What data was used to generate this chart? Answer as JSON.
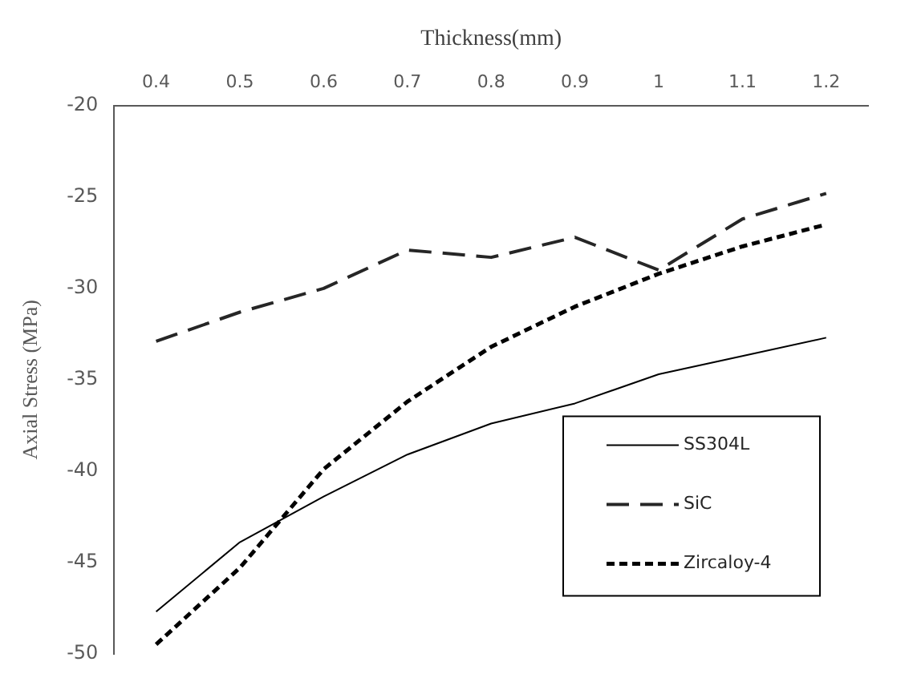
{
  "chart_data": {
    "type": "line",
    "xlabel": "Thickness(mm)",
    "ylabel": "Axial Stress (MPa)",
    "categories": [
      "0.4",
      "0.5",
      "0.6",
      "0.7",
      "0.8",
      "0.9",
      "1",
      "1.1",
      "1.2"
    ],
    "ylim": [
      -50,
      -20
    ],
    "yticks": [
      -50,
      -45,
      -40,
      -35,
      -30,
      -25,
      -20
    ],
    "legend": "bottom right",
    "marker": "none",
    "grid": false,
    "series": [
      {
        "name": "SS304L",
        "color": "#000000",
        "line_style": "solid",
        "values": [
          -47.7,
          -43.9,
          -41.4,
          -39.1,
          -37.4,
          -36.3,
          -34.7,
          -33.7,
          -32.7
        ]
      },
      {
        "name": "SiC",
        "color": "#262626",
        "line_style": "dashed",
        "values": [
          -32.9,
          -31.3,
          -30.0,
          -27.9,
          -28.3,
          -27.2,
          -29.0,
          -26.2,
          -24.8
        ]
      },
      {
        "name": "Zircaloy-4",
        "color": "#000000",
        "line_style": "dotted",
        "values": [
          -49.5,
          -45.3,
          -39.9,
          -36.2,
          -33.2,
          -31.0,
          -29.2,
          -27.7,
          -26.5
        ]
      }
    ]
  }
}
